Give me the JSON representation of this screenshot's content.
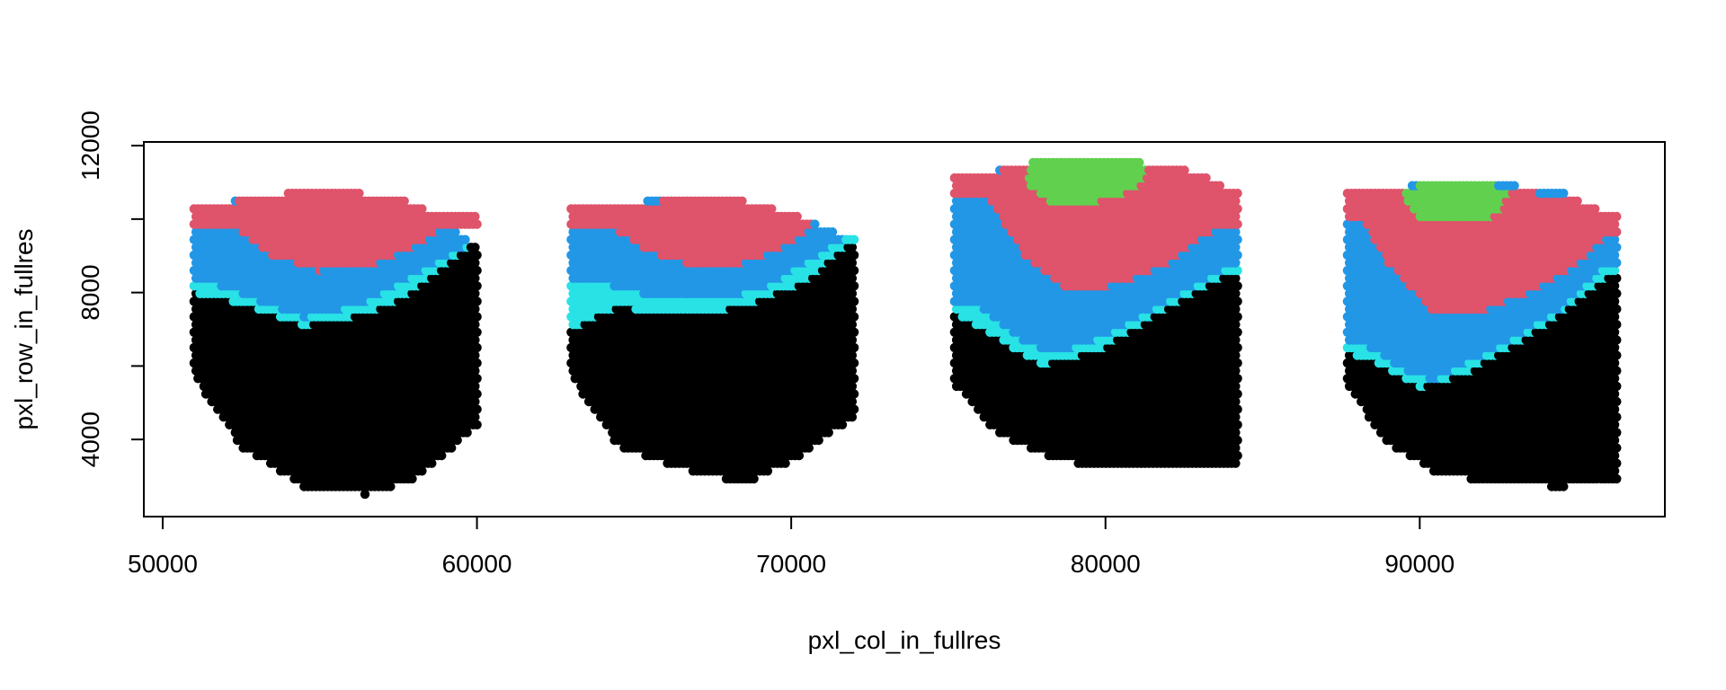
{
  "chart_data": {
    "type": "scatter",
    "title": "",
    "xlabel": "pxl_col_in_fullres",
    "ylabel": "pxl_row_in_fullres",
    "xlim": [
      49400,
      97800
    ],
    "ylim": [
      1900,
      12100
    ],
    "xticks": [
      50000,
      60000,
      70000,
      80000,
      90000
    ],
    "yticks": [
      4000,
      8000,
      12000
    ],
    "yticks_unlabeled": [
      6000,
      10000
    ],
    "grid": false,
    "legend": "none",
    "colors": {
      "black": "#000000",
      "cyan": "#28e2e5",
      "blue": "#2297e6",
      "red": "#df536b",
      "green": "#61d04f"
    },
    "sections": [
      {
        "x_range": [
          51000,
          60000
        ],
        "bottom": [
          [
            51000,
            5700
          ],
          [
            52500,
            3800
          ],
          [
            54500,
            2700
          ],
          [
            56500,
            2500
          ],
          [
            58000,
            2900
          ],
          [
            59800,
            4200
          ]
        ],
        "black_top": [
          [
            51000,
            8000
          ],
          [
            52500,
            7700
          ],
          [
            54500,
            7100
          ],
          [
            56500,
            7400
          ],
          [
            58000,
            8000
          ],
          [
            59800,
            9300
          ]
        ],
        "cyan_top": [
          [
            51700,
            8200
          ],
          [
            53000,
            7800
          ],
          [
            54500,
            7300
          ],
          [
            56500,
            7700
          ],
          [
            58500,
            8700
          ],
          [
            59800,
            9300
          ]
        ],
        "blue_top": [
          [
            51700,
            10400
          ],
          [
            53000,
            10600
          ],
          [
            55000,
            10700
          ],
          [
            57000,
            10500
          ],
          [
            58800,
            10000
          ],
          [
            59800,
            9400
          ]
        ],
        "red_top": [
          [
            51800,
            10400
          ],
          [
            53000,
            10600
          ],
          [
            55000,
            10800
          ],
          [
            57500,
            10600
          ],
          [
            58500,
            10200
          ]
        ],
        "red_bottom": [
          [
            52200,
            9800
          ],
          [
            53500,
            9000
          ],
          [
            55000,
            8600
          ],
          [
            56500,
            8700
          ],
          [
            58000,
            9200
          ],
          [
            59000,
            9800
          ]
        ],
        "green": null
      },
      {
        "x_range": [
          63000,
          72000
        ],
        "bottom": [
          [
            63000,
            5700
          ],
          [
            64500,
            3800
          ],
          [
            66500,
            3200
          ],
          [
            68500,
            2800
          ],
          [
            70000,
            3400
          ],
          [
            71800,
            4500
          ]
        ],
        "black_top": [
          [
            63000,
            7000
          ],
          [
            64500,
            7600
          ],
          [
            66500,
            7400
          ],
          [
            68500,
            7600
          ],
          [
            70500,
            8300
          ],
          [
            71800,
            9300
          ]
        ],
        "cyan_top": [
          [
            63800,
            8300
          ],
          [
            66000,
            7800
          ],
          [
            69000,
            8000
          ],
          [
            71800,
            9500
          ]
        ],
        "blue_top": [
          [
            63800,
            10300
          ],
          [
            65500,
            10500
          ],
          [
            68000,
            10500
          ],
          [
            70500,
            10000
          ],
          [
            71800,
            9500
          ]
        ],
        "red_top": [
          [
            64000,
            10300
          ],
          [
            66000,
            10500
          ],
          [
            68500,
            10500
          ],
          [
            70500,
            10000
          ]
        ],
        "red_bottom": [
          [
            64300,
            9800
          ],
          [
            65500,
            9100
          ],
          [
            67000,
            8700
          ],
          [
            68500,
            8800
          ],
          [
            70000,
            9300
          ],
          [
            70800,
            9900
          ]
        ],
        "green": null
      },
      {
        "x_range": [
          75200,
          84200
        ],
        "bottom": [
          [
            75200,
            5500
          ],
          [
            76500,
            4200
          ],
          [
            78500,
            3400
          ],
          [
            81000,
            3200
          ],
          [
            83000,
            3200
          ],
          [
            84100,
            3200
          ]
        ],
        "black_top": [
          [
            75200,
            7400
          ],
          [
            76500,
            6800
          ],
          [
            78000,
            6000
          ],
          [
            80000,
            6500
          ],
          [
            82000,
            7600
          ],
          [
            84000,
            8500
          ]
        ],
        "cyan_top": [
          [
            75800,
            7700
          ],
          [
            77500,
            6600
          ],
          [
            78500,
            6300
          ],
          [
            80500,
            7000
          ],
          [
            82500,
            8000
          ],
          [
            84000,
            8700
          ]
        ],
        "blue_top": [
          [
            75800,
            11000
          ],
          [
            77000,
            11500
          ],
          [
            79500,
            11600
          ],
          [
            82500,
            11300
          ],
          [
            84000,
            10800
          ]
        ],
        "red_top": [
          [
            76000,
            11200
          ],
          [
            77500,
            11500
          ],
          [
            80000,
            11500
          ],
          [
            83000,
            11300
          ],
          [
            83900,
            10800
          ]
        ],
        "red_bottom": [
          [
            76300,
            10600
          ],
          [
            77500,
            8900
          ],
          [
            78800,
            8100
          ],
          [
            80500,
            8200
          ],
          [
            82000,
            8800
          ],
          [
            83500,
            9700
          ]
        ],
        "green": [
          [
            77500,
            11500
          ],
          [
            78500,
            11750
          ],
          [
            80000,
            11650
          ],
          [
            81500,
            11500
          ],
          [
            81000,
            10800
          ],
          [
            79500,
            10400
          ],
          [
            78300,
            10400
          ],
          [
            77600,
            10900
          ]
        ]
      },
      {
        "x_range": [
          87700,
          96300
        ],
        "bottom": [
          [
            87700,
            5400
          ],
          [
            89000,
            3900
          ],
          [
            90500,
            3100
          ],
          [
            92500,
            2800
          ],
          [
            94500,
            2700
          ],
          [
            96100,
            2900
          ]
        ],
        "black_top": [
          [
            87700,
            6400
          ],
          [
            88800,
            6000
          ],
          [
            90000,
            5400
          ],
          [
            91500,
            5800
          ],
          [
            93500,
            6800
          ],
          [
            96000,
            8400
          ]
        ],
        "cyan_top": [
          [
            88000,
            6700
          ],
          [
            89500,
            5900
          ],
          [
            90500,
            5600
          ],
          [
            92500,
            6500
          ],
          [
            94500,
            7500
          ],
          [
            96000,
            8800
          ]
        ],
        "blue_top": [
          [
            87800,
            10600
          ],
          [
            89500,
            10900
          ],
          [
            92000,
            11000
          ],
          [
            94500,
            10800
          ],
          [
            96100,
            9800
          ]
        ],
        "red_top": [
          [
            88000,
            10700
          ],
          [
            89800,
            10900
          ],
          [
            92500,
            10900
          ],
          [
            95000,
            10500
          ],
          [
            95800,
            10200
          ]
        ],
        "red_bottom": [
          [
            88200,
            10000
          ],
          [
            89000,
            8800
          ],
          [
            90500,
            7400
          ],
          [
            92000,
            7500
          ],
          [
            93500,
            8000
          ],
          [
            95000,
            8700
          ],
          [
            95900,
            9500
          ]
        ],
        "green": [
          [
            89500,
            10800
          ],
          [
            90500,
            11050
          ],
          [
            92000,
            11000
          ],
          [
            92900,
            10800
          ],
          [
            92500,
            10100
          ],
          [
            91000,
            9900
          ],
          [
            89800,
            10100
          ]
        ]
      }
    ]
  }
}
